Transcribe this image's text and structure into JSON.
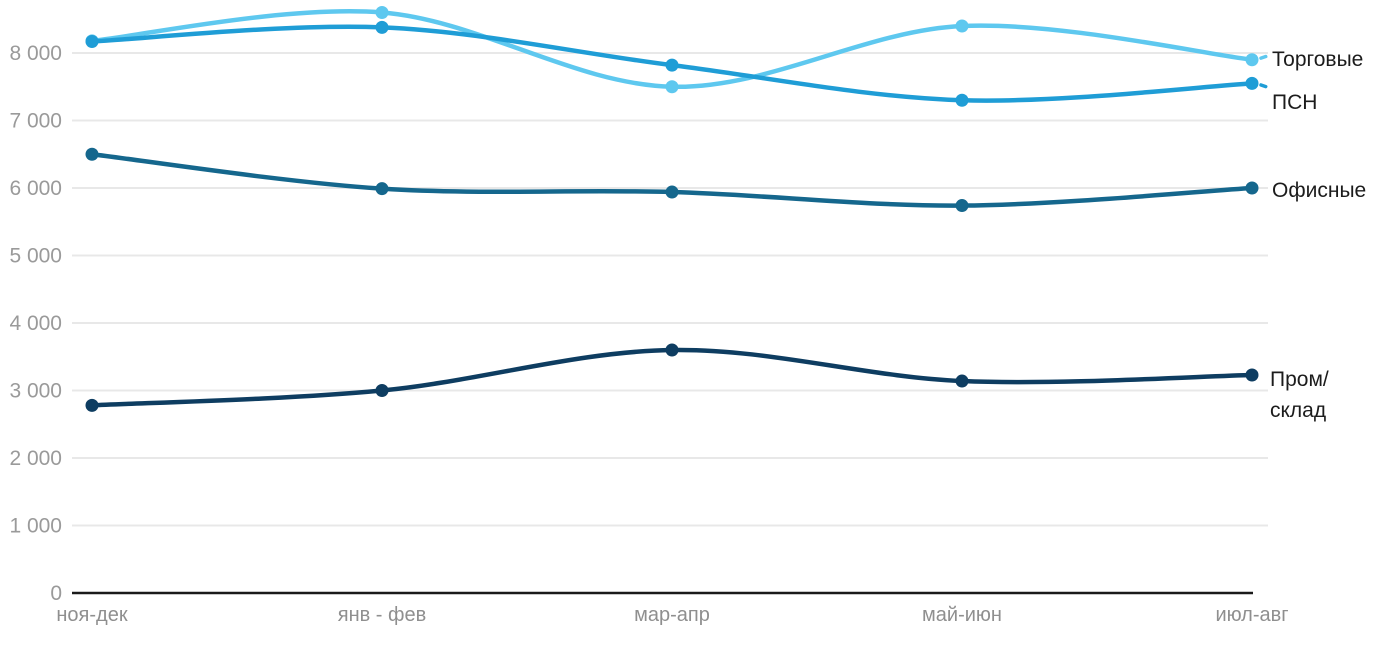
{
  "chart_data": {
    "type": "line",
    "title": "",
    "xlabel": "",
    "ylabel": "",
    "categories": [
      "ноя-дек",
      "янв - фев",
      "мар-апр",
      "май-июн",
      "июл-авг"
    ],
    "series": [
      {
        "name": "Торговые",
        "label": "Торговые",
        "color": "#5ec8ef",
        "values": [
          8180,
          8600,
          7500,
          8400,
          7900
        ]
      },
      {
        "name": "ПСН",
        "label": "ПСН",
        "color": "#1f9dd6",
        "values": [
          8170,
          8380,
          7820,
          7300,
          7550
        ]
      },
      {
        "name": "Офисные",
        "label": "Офисные",
        "color": "#15678d",
        "values": [
          6500,
          5990,
          5940,
          5740,
          6000
        ]
      },
      {
        "name": "Пром/склад",
        "label": "Пром/\nсклад",
        "color": "#0e3d61",
        "values": [
          2780,
          3000,
          3600,
          3140,
          3230
        ]
      }
    ],
    "ylim": [
      0,
      8000
    ],
    "ytick_values": [
      0,
      1000,
      2000,
      3000,
      4000,
      5000,
      6000,
      7000,
      8000
    ],
    "ytick_labels": [
      "0",
      "1 000",
      "2 000",
      "3 000",
      "4 000",
      "5 000",
      "6 000",
      "7 000",
      "8 000"
    ],
    "grid": true,
    "legend_position": "right",
    "colors": {
      "grid": "#e8e8e8",
      "axis": "#1a1a1a",
      "ytick_text": "#9a9a9a",
      "xtick_text": "#8f8f8f",
      "label_text": "#1c1c1c",
      "background": "#ffffff"
    }
  }
}
